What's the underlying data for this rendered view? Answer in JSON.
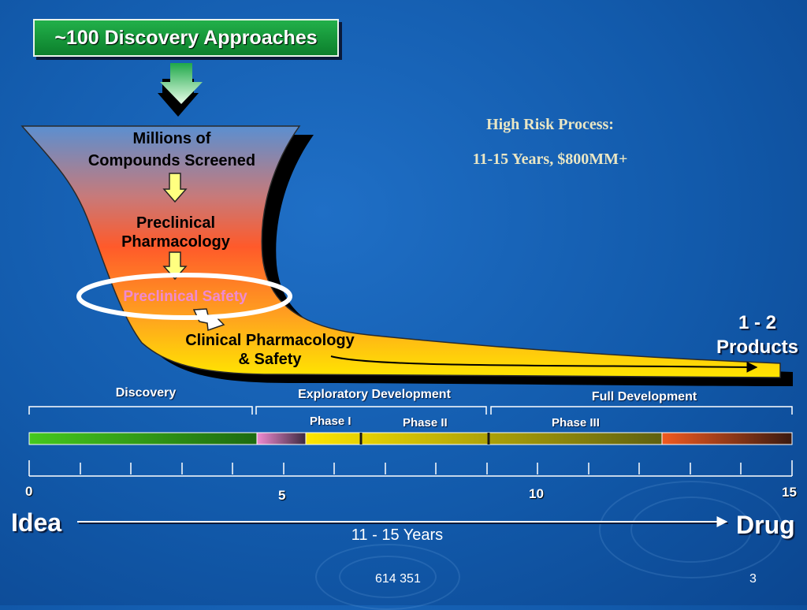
{
  "title_box": "~100 Discovery Approaches",
  "funnel": {
    "stage1_line1": "Millions of",
    "stage1_line2": "Compounds Screened",
    "stage2_line1": "Preclinical",
    "stage2_line2": "Pharmacology",
    "stage3": "Preclinical Safety",
    "stage4_line1": "Clinical Pharmacology",
    "stage4_line2": "& Safety"
  },
  "risk": {
    "line1": "High Risk Process:",
    "line2": "11-15 Years, $800MM+"
  },
  "products": {
    "line1": "1 - 2",
    "line2": "Products"
  },
  "phases": {
    "discovery": "Discovery",
    "exploratory": "Exploratory Development",
    "full": "Full Development",
    "phase1": "Phase I",
    "phase2": "Phase II",
    "phase3": "Phase III"
  },
  "timeline": {
    "tick0": "0",
    "tick5": "5",
    "tick10": "10",
    "tick15": "15",
    "start": "Idea",
    "end": "Drug",
    "duration": "11 - 15 Years"
  },
  "footer": {
    "code": "614 351",
    "page": "3"
  },
  "colors": {
    "background": "#125aab",
    "title_box": "#1a9a3c",
    "risk_text": "#e9e6c4",
    "highlight_ring": "#ffffff",
    "highlight_text": "#f08ad0"
  }
}
